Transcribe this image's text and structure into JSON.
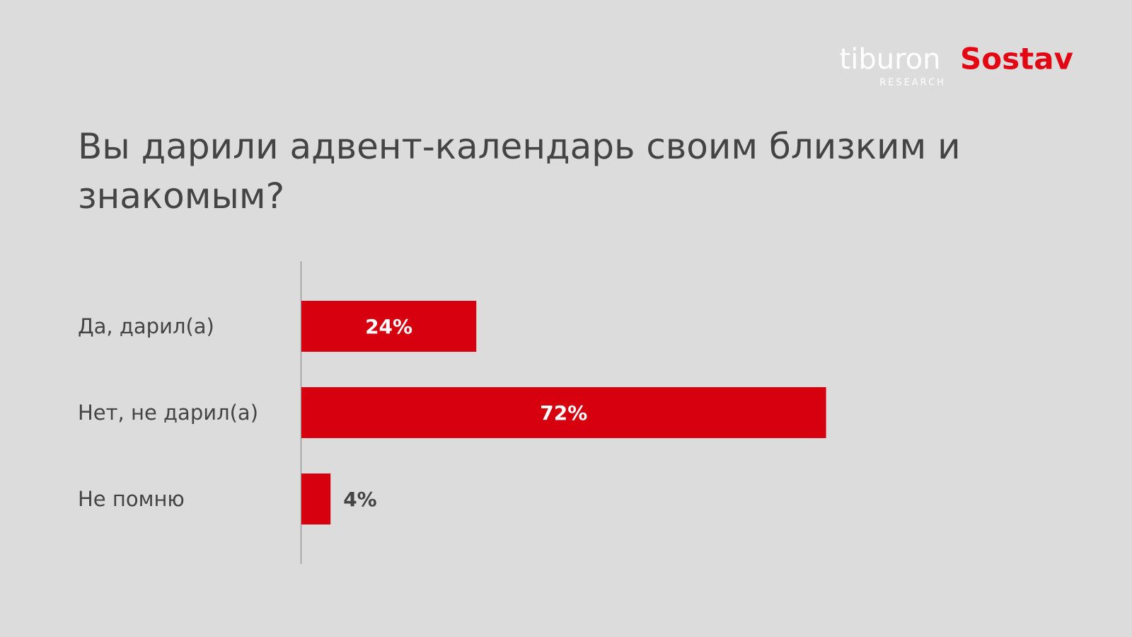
{
  "chart_data": {
    "type": "hbar",
    "title": "Вы дарили адвент-календарь своим близким и знакомым?",
    "annotations": [
      "tiburon",
      "RESEARCH",
      "Sostav"
    ],
    "categories": [
      "Да, дарил(а)",
      "Нет, не дарил(а)",
      "Не помню"
    ],
    "values": [
      24,
      72,
      4
    ],
    "value_labels": [
      "24%",
      "72%",
      "4%"
    ],
    "color": "#d7000f",
    "xlim": [
      0,
      100
    ]
  }
}
